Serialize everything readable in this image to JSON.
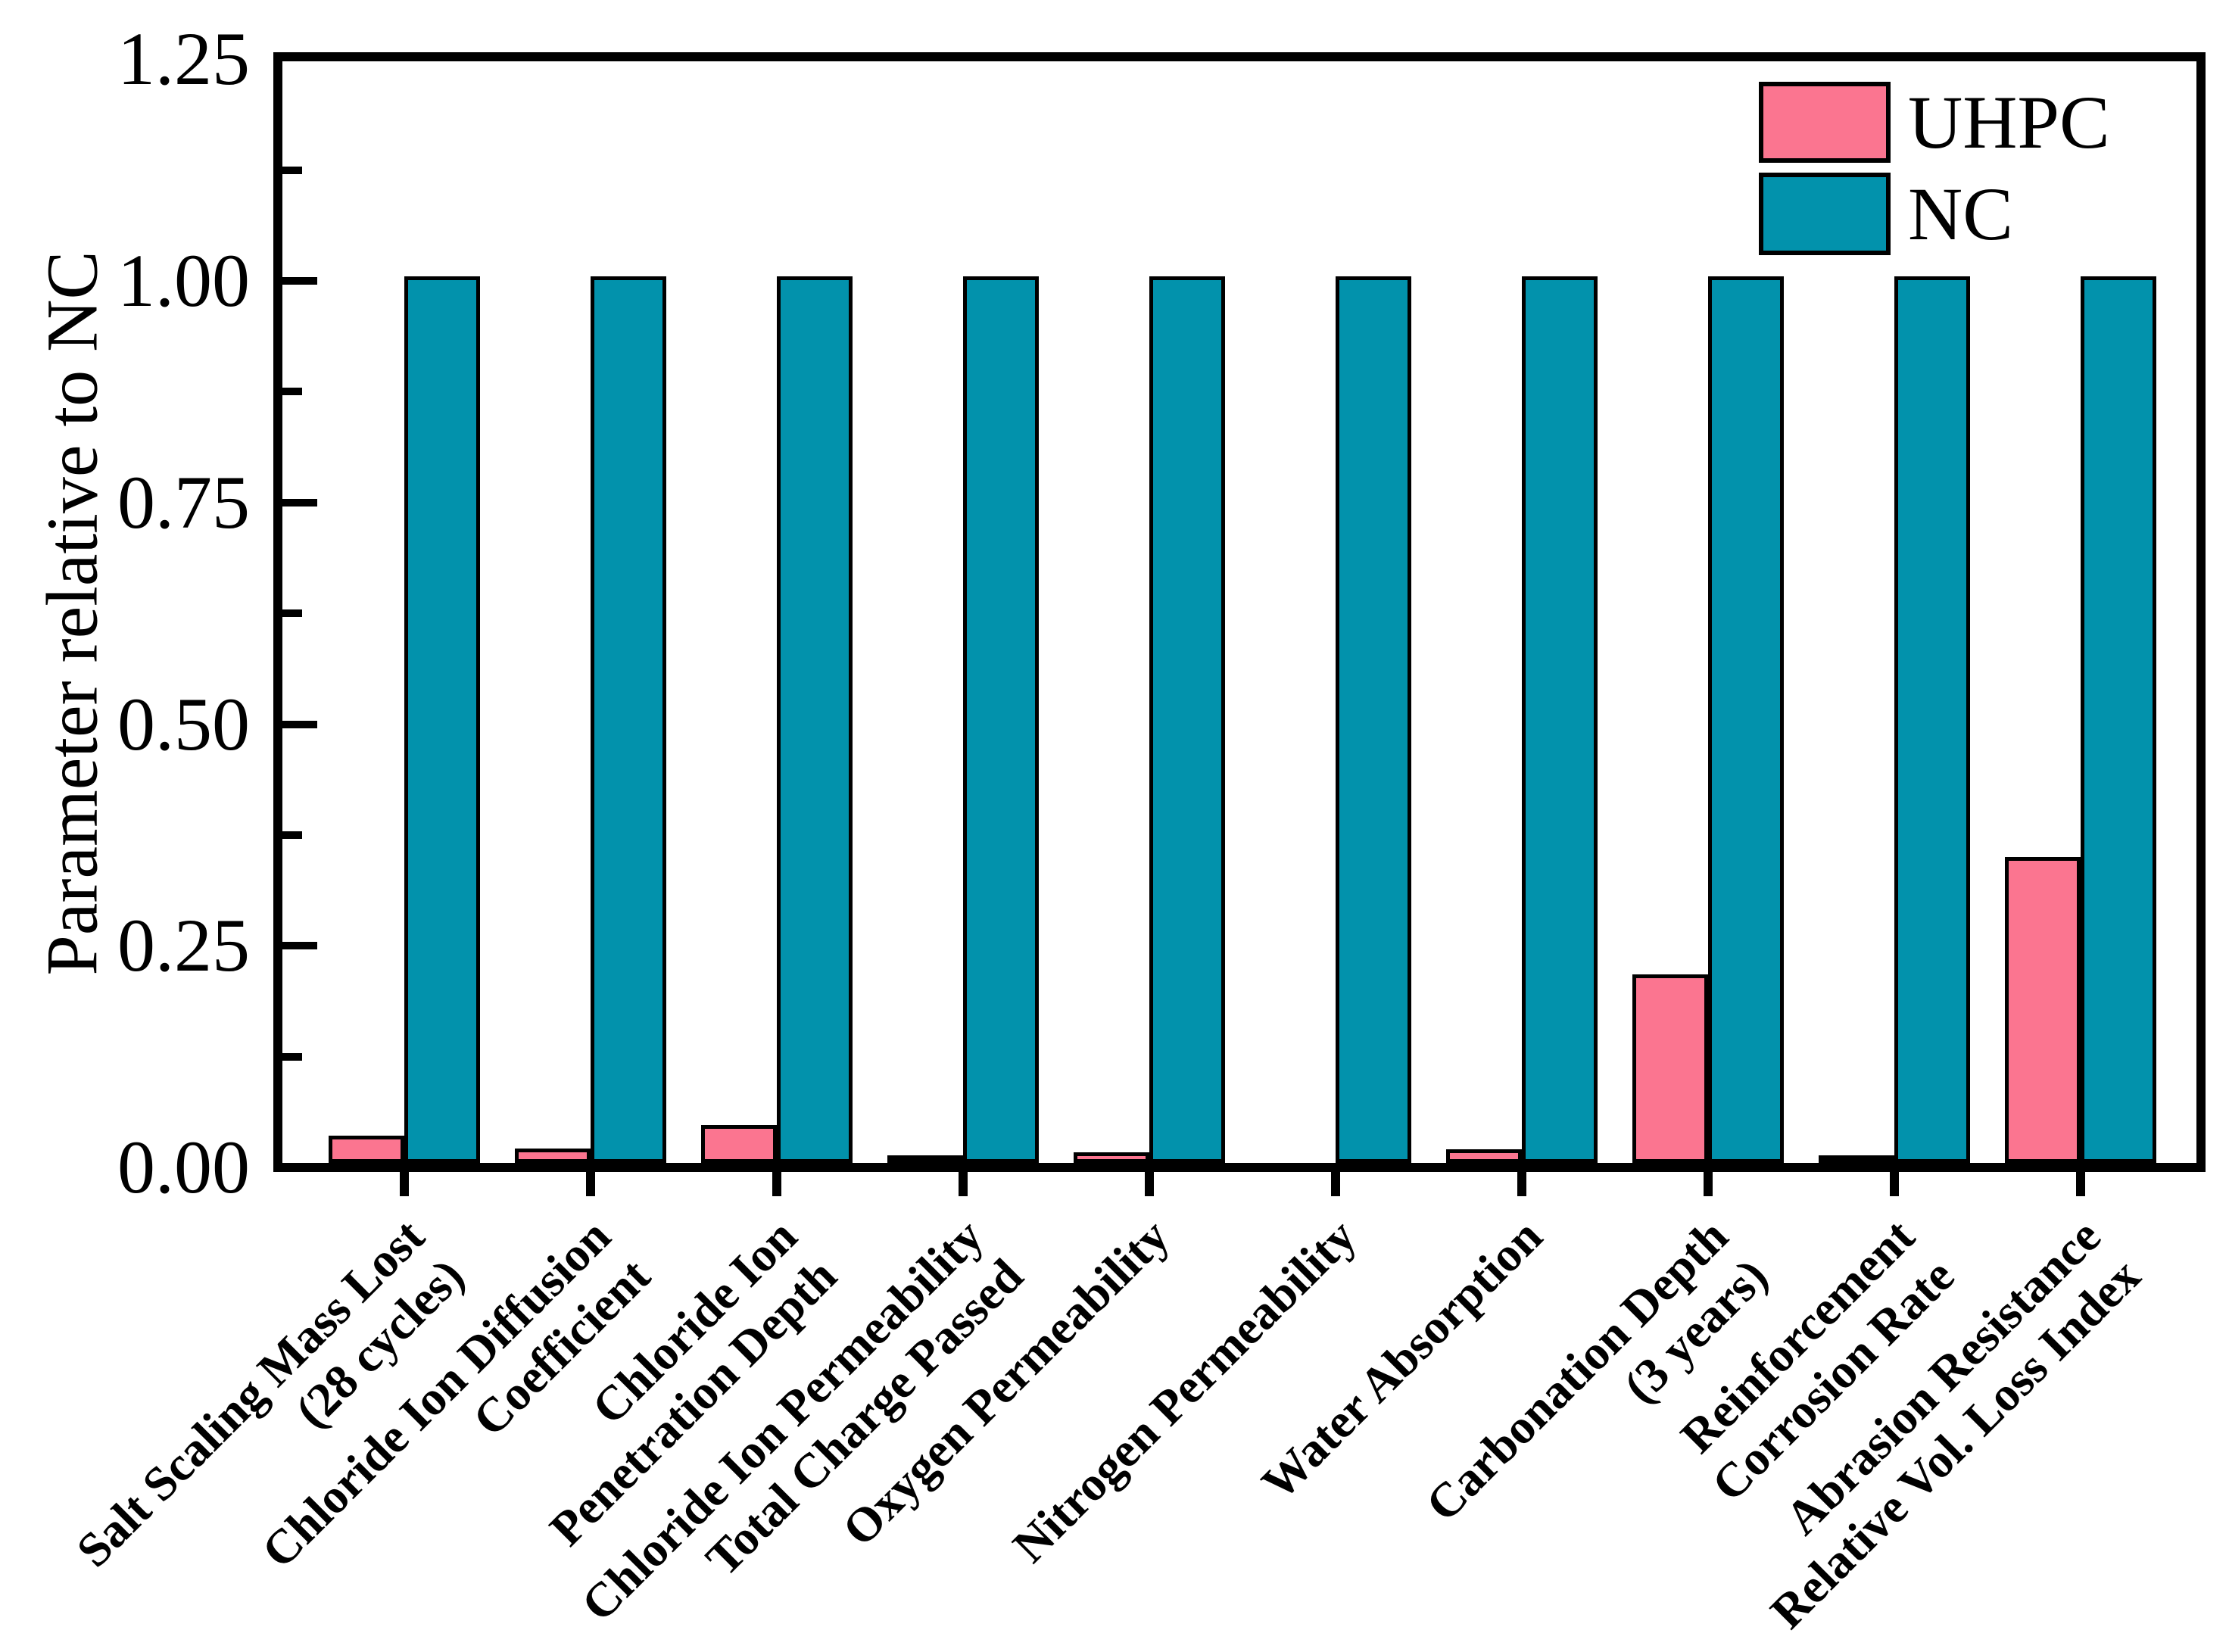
{
  "chart_data": {
    "type": "bar",
    "title": "",
    "xlabel": "",
    "ylabel": "Parameter relative to NC",
    "ylim": [
      0,
      1.25
    ],
    "ytick_labels": [
      "0.00",
      "0.25",
      "0.50",
      "0.75",
      "1.00",
      "1.25"
    ],
    "ytick_values": [
      0.0,
      0.25,
      0.5,
      0.75,
      1.0,
      1.25
    ],
    "yminor_values": [
      0.125,
      0.375,
      0.625,
      0.875,
      1.125
    ],
    "grid": false,
    "legend_position": "top-right",
    "categories": [
      [
        "Salt Scaling Mass Lost",
        "(28 cycles)"
      ],
      [
        "Chloride Ion Diffusion",
        "Coefficient"
      ],
      [
        "Chloride Ion",
        "Penetration Depth"
      ],
      [
        "Chloride Ion Permeability",
        "Total Charge Passed"
      ],
      [
        "Oxygen Permeability"
      ],
      [
        "Nitrogen Permeability"
      ],
      [
        "Water Absorption"
      ],
      [
        "Carbonation Depth",
        "(3 years)"
      ],
      [
        "Reinforcement",
        "Corrosion Rate"
      ],
      [
        "Abrasion Resistance",
        "Relative Vol. Loss Index"
      ]
    ],
    "series": [
      {
        "name": "UHPC",
        "color": "#FB7590",
        "values": [
          0.031,
          0.016,
          0.043,
          0.005,
          0.012,
          0.0,
          0.015,
          0.213,
          0.008,
          0.345
        ]
      },
      {
        "name": "NC",
        "color": "#0292AC",
        "values": [
          1.0,
          1.0,
          1.0,
          1.0,
          1.0,
          1.0,
          1.0,
          1.0,
          1.0,
          1.0
        ]
      }
    ],
    "outline_color": "#000000"
  }
}
